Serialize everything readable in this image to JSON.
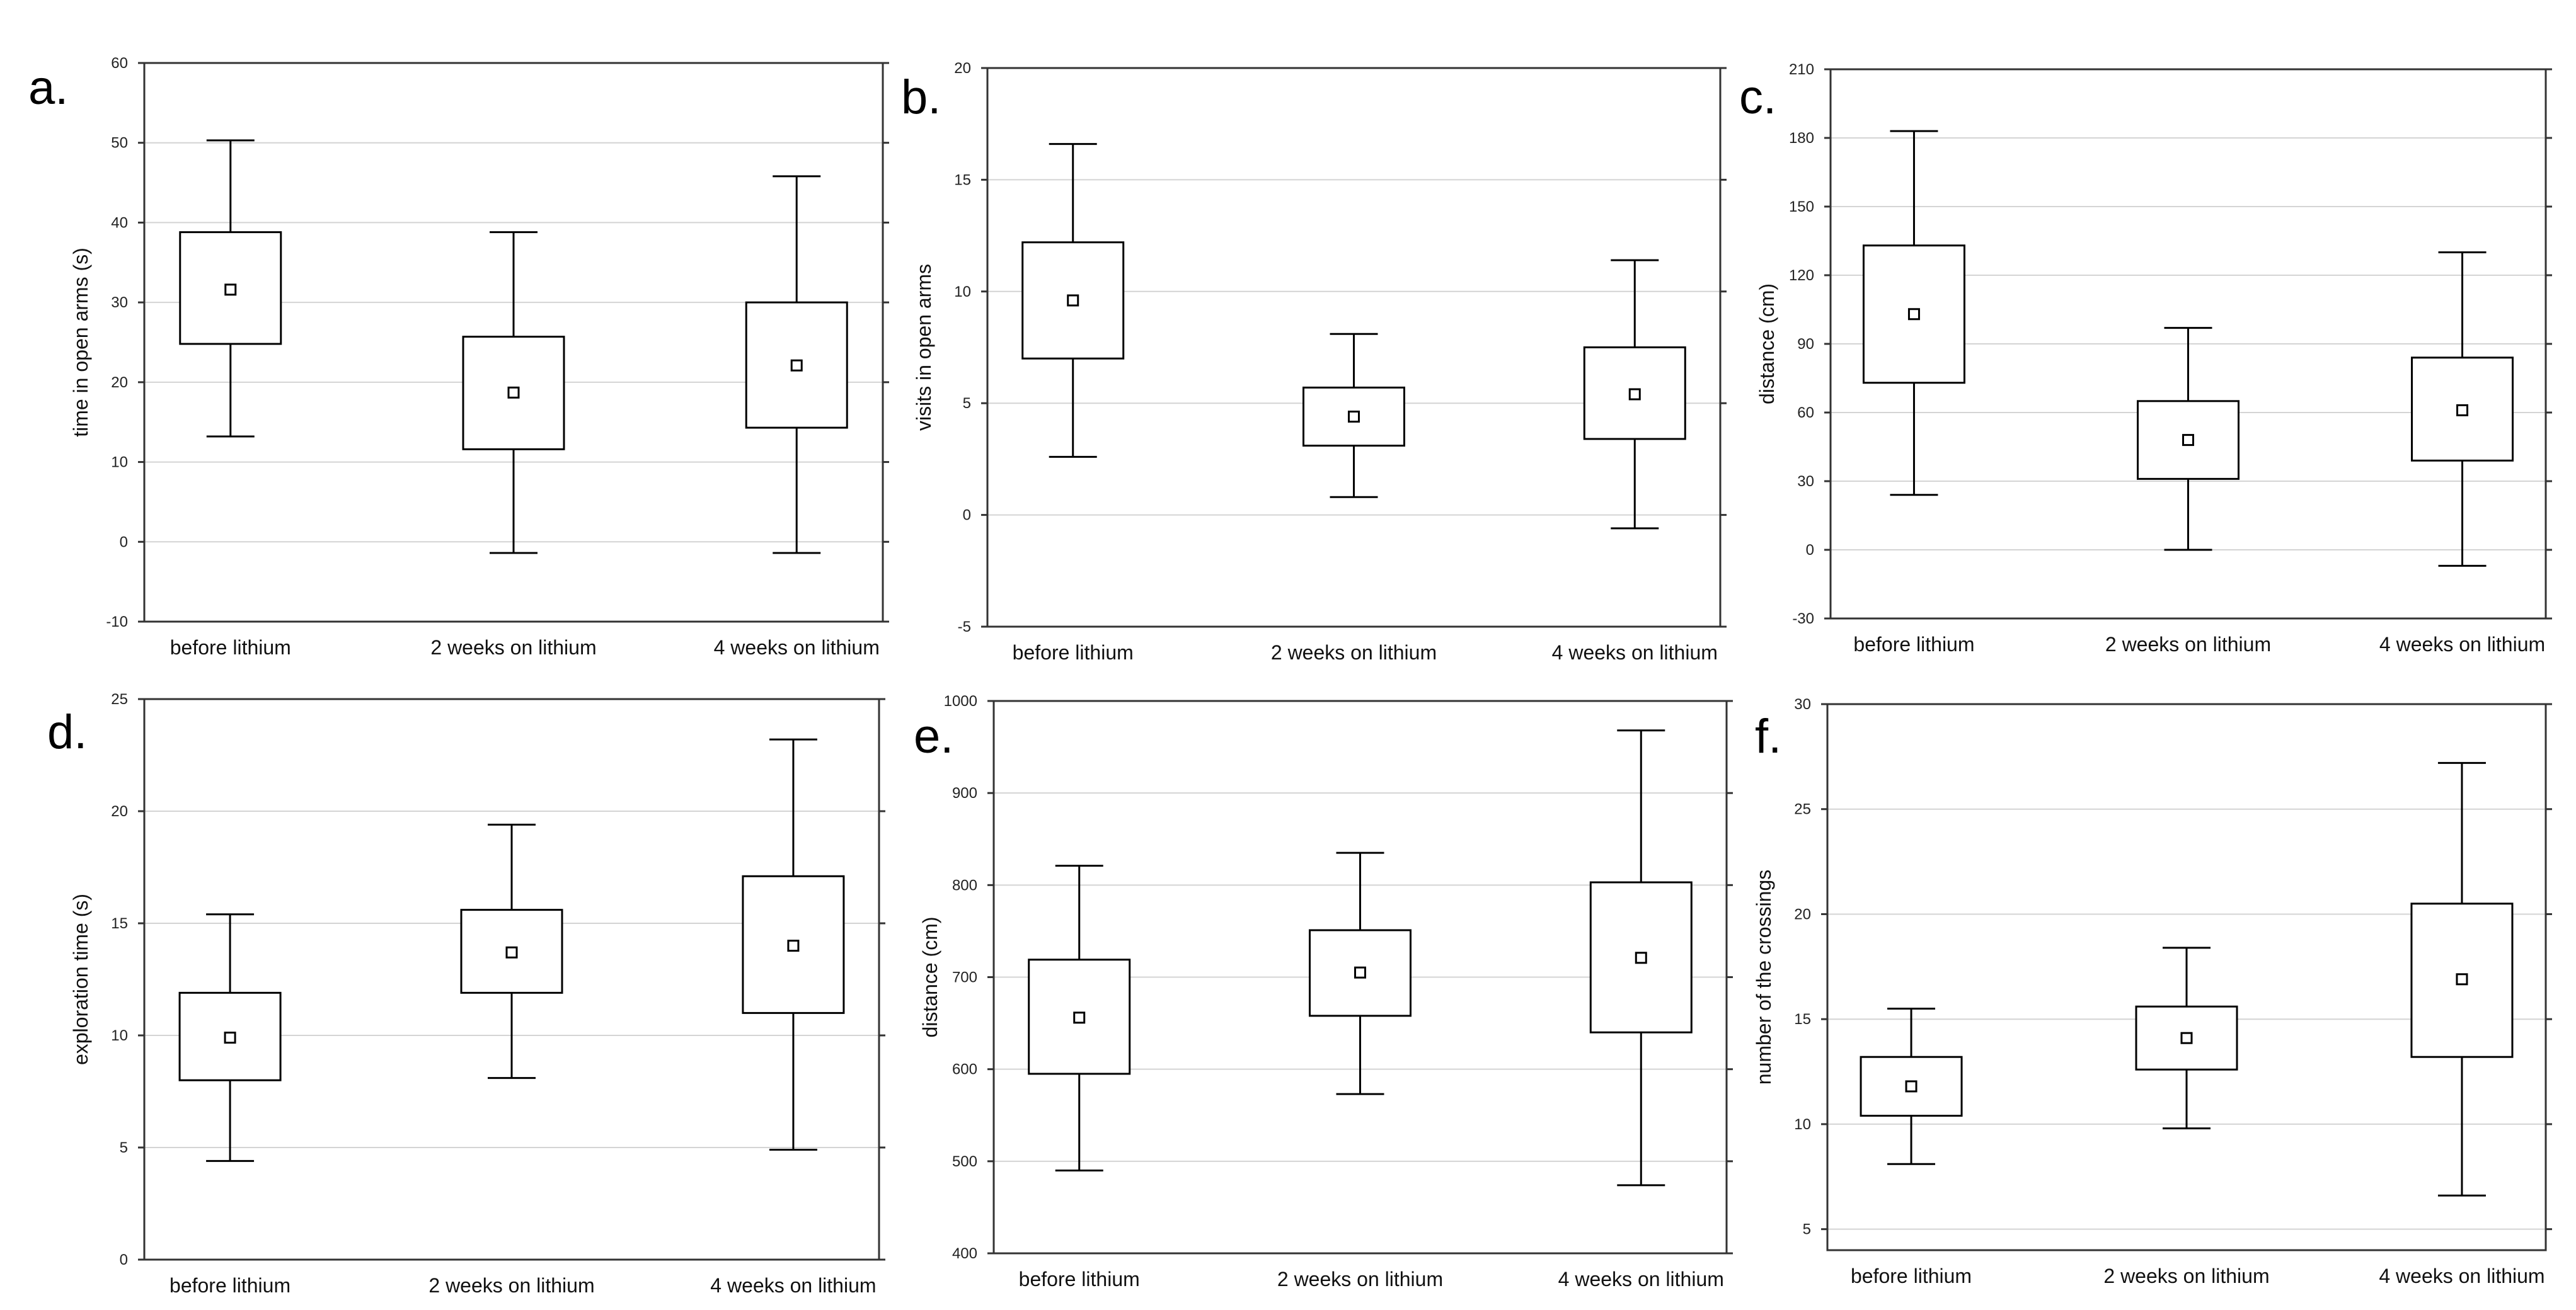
{
  "chart_data": [
    {
      "type": "box",
      "panel_label": "a.",
      "ylabel": "time in open arms (s)",
      "xlabel": "",
      "ylim": [
        -10,
        60
      ],
      "yticks": [
        -10,
        0,
        10,
        20,
        30,
        40,
        50,
        60
      ],
      "categories": [
        "before lithium",
        "2 weeks on lithium",
        "4 weeks on lithium"
      ],
      "boxes": [
        {
          "whisker_low": 13.2,
          "q1": 24.8,
          "mean": 31.6,
          "q3": 38.8,
          "whisker_high": 50.3
        },
        {
          "whisker_low": -1.4,
          "q1": 11.6,
          "mean": 18.7,
          "q3": 25.7,
          "whisker_high": 38.8
        },
        {
          "whisker_low": -1.4,
          "q1": 14.3,
          "mean": 22.1,
          "q3": 30.0,
          "whisker_high": 45.8
        }
      ]
    },
    {
      "type": "box",
      "panel_label": "b.",
      "ylabel": "visits in open arms",
      "xlabel": "",
      "ylim": [
        -5,
        20
      ],
      "yticks": [
        -5,
        0,
        5,
        10,
        15,
        20
      ],
      "categories": [
        "before lithium",
        "2 weeks on lithium",
        "4 weeks on lithium"
      ],
      "boxes": [
        {
          "whisker_low": 2.6,
          "q1": 7.0,
          "mean": 9.6,
          "q3": 12.2,
          "whisker_high": 16.6
        },
        {
          "whisker_low": 0.8,
          "q1": 3.1,
          "mean": 4.4,
          "q3": 5.7,
          "whisker_high": 8.1
        },
        {
          "whisker_low": -0.6,
          "q1": 3.4,
          "mean": 5.4,
          "q3": 7.5,
          "whisker_high": 11.4
        }
      ]
    },
    {
      "type": "box",
      "panel_label": "c.",
      "ylabel": "distance (cm)",
      "xlabel": "",
      "ylim": [
        -30,
        210
      ],
      "yticks": [
        -30,
        0,
        30,
        60,
        90,
        120,
        150,
        180,
        210
      ],
      "categories": [
        "before lithium",
        "2 weeks on lithium",
        "4 weeks on lithium"
      ],
      "boxes": [
        {
          "whisker_low": 24,
          "q1": 73,
          "mean": 103,
          "q3": 133,
          "whisker_high": 183
        },
        {
          "whisker_low": 0,
          "q1": 31,
          "mean": 48,
          "q3": 65,
          "whisker_high": 97
        },
        {
          "whisker_low": -7,
          "q1": 39,
          "mean": 61,
          "q3": 84,
          "whisker_high": 130
        }
      ]
    },
    {
      "type": "box",
      "panel_label": "d.",
      "ylabel": "exploration time (s)",
      "xlabel": "",
      "ylim": [
        0,
        25
      ],
      "yticks": [
        0,
        5,
        10,
        15,
        20,
        25
      ],
      "categories": [
        "before lithium",
        "2 weeks on lithium",
        "4 weeks on lithium"
      ],
      "boxes": [
        {
          "whisker_low": 4.4,
          "q1": 8.0,
          "mean": 9.9,
          "q3": 11.9,
          "whisker_high": 15.4
        },
        {
          "whisker_low": 8.1,
          "q1": 11.9,
          "mean": 13.7,
          "q3": 15.6,
          "whisker_high": 19.4
        },
        {
          "whisker_low": 4.9,
          "q1": 11.0,
          "mean": 14.0,
          "q3": 17.1,
          "whisker_high": 23.2
        }
      ]
    },
    {
      "type": "box",
      "panel_label": "e.",
      "ylabel": "distance (cm)",
      "xlabel": "",
      "ylim": [
        400,
        1000
      ],
      "yticks": [
        400,
        500,
        600,
        700,
        800,
        900,
        1000
      ],
      "categories": [
        "before lithium",
        "2 weeks on lithium",
        "4 weeks on lithium"
      ],
      "boxes": [
        {
          "whisker_low": 490,
          "q1": 595,
          "mean": 656,
          "q3": 719,
          "whisker_high": 821
        },
        {
          "whisker_low": 573,
          "q1": 658,
          "mean": 705,
          "q3": 751,
          "whisker_high": 835
        },
        {
          "whisker_low": 474,
          "q1": 640,
          "mean": 721,
          "q3": 803,
          "whisker_high": 968
        }
      ]
    },
    {
      "type": "box",
      "panel_label": "f.",
      "ylabel": "number of the crossings",
      "xlabel": "",
      "ylim": [
        4,
        30
      ],
      "yticks": [
        5,
        10,
        15,
        20,
        25,
        30
      ],
      "categories": [
        "before lithium",
        "2 weeks on lithium",
        "4 weeks on lithium"
      ],
      "boxes": [
        {
          "whisker_low": 8.1,
          "q1": 10.4,
          "mean": 11.8,
          "q3": 13.2,
          "whisker_high": 15.5
        },
        {
          "whisker_low": 9.8,
          "q1": 12.6,
          "mean": 14.1,
          "q3": 15.6,
          "whisker_high": 18.4
        },
        {
          "whisker_low": 6.6,
          "q1": 13.2,
          "mean": 16.9,
          "q3": 20.5,
          "whisker_high": 27.2
        }
      ]
    }
  ]
}
